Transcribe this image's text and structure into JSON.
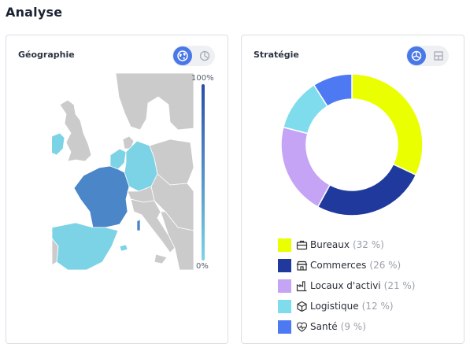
{
  "page": {
    "title": "Analyse"
  },
  "geography": {
    "title": "Géographie",
    "scale_max": "100%",
    "scale_min": "0%",
    "colors": {
      "low": "#7dd3e6",
      "high": "#2c4ea8",
      "land": "#cbcbcb"
    },
    "toggle": {
      "active": "globe",
      "inactive": "pie"
    }
  },
  "strategy": {
    "title": "Stratégie",
    "toggle": {
      "active": "pie",
      "inactive": "grid"
    },
    "chart_data": {
      "type": "pie",
      "donut": true,
      "categories": [
        "Bureaux",
        "Commerces",
        "Locaux d'activi",
        "Logistique",
        "Santé"
      ],
      "values": [
        32,
        26,
        21,
        12,
        9
      ],
      "colors": [
        "#eaff00",
        "#1f3a9c",
        "#c5a3f5",
        "#7fdcec",
        "#4d79f2"
      ],
      "legend": [
        {
          "label": "Bureaux",
          "pct": "(32 %)",
          "icon": "briefcase-icon",
          "color": "#eaff00"
        },
        {
          "label": "Commerces",
          "pct": "(26 %)",
          "icon": "store-icon",
          "color": "#1f3a9c"
        },
        {
          "label": "Locaux d'activi",
          "pct": "(21 %)",
          "icon": "factory-icon",
          "color": "#c5a3f5"
        },
        {
          "label": "Logistique",
          "pct": "(12 %)",
          "icon": "box-icon",
          "color": "#7fdcec"
        },
        {
          "label": "Santé",
          "pct": "(9 %)",
          "icon": "heart-pulse-icon",
          "color": "#4d79f2"
        }
      ]
    }
  }
}
